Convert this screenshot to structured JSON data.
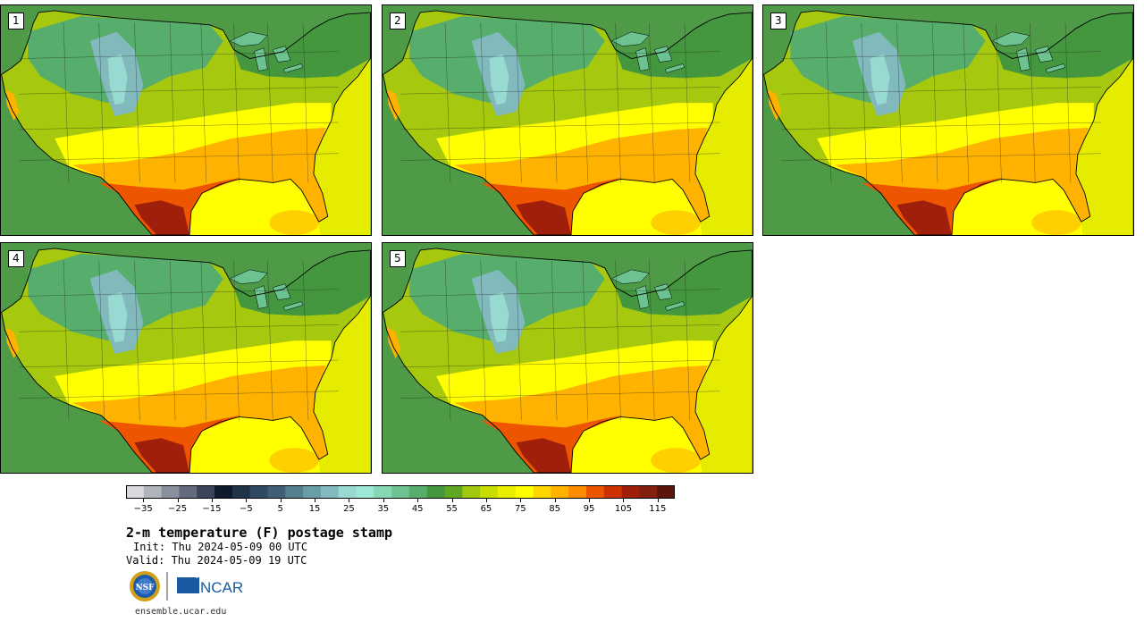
{
  "panels": [
    {
      "label": "1"
    },
    {
      "label": "2"
    },
    {
      "label": "3"
    },
    {
      "label": "4"
    },
    {
      "label": "5"
    }
  ],
  "colorbar": {
    "colors": [
      "#d9d9dd",
      "#b1b4bd",
      "#8a8f9d",
      "#646b7e",
      "#3b4459",
      "#0e1b2c",
      "#1f3349",
      "#2f4a62",
      "#3e5f77",
      "#537f8e",
      "#6a9ea7",
      "#81b9bc",
      "#98dad1",
      "#9ce8d6",
      "#85d8b4",
      "#6cc391",
      "#56ad6c",
      "#44973f",
      "#5fa722",
      "#a2c80d",
      "#c8de00",
      "#eaed00",
      "#ffff00",
      "#ffd500",
      "#ffb300",
      "#ff8c00",
      "#ee5500",
      "#cc3300",
      "#a01f0b",
      "#822010",
      "#5c1509"
    ],
    "ticks": [
      "−35",
      "−25",
      "−15",
      "−5",
      "5",
      "15",
      "25",
      "35",
      "45",
      "55",
      "65",
      "75",
      "85",
      "95",
      "105",
      "115"
    ],
    "min": -40,
    "max": 120
  },
  "title": "2-m temperature (F) postage stamp",
  "init": "Init: Thu 2024-05-09 00 UTC",
  "valid": "Valid: Thu 2024-05-09 19 UTC",
  "logos": {
    "left": "NSF",
    "right": "NCAR"
  },
  "url": "ensemble.ucar.edu"
}
